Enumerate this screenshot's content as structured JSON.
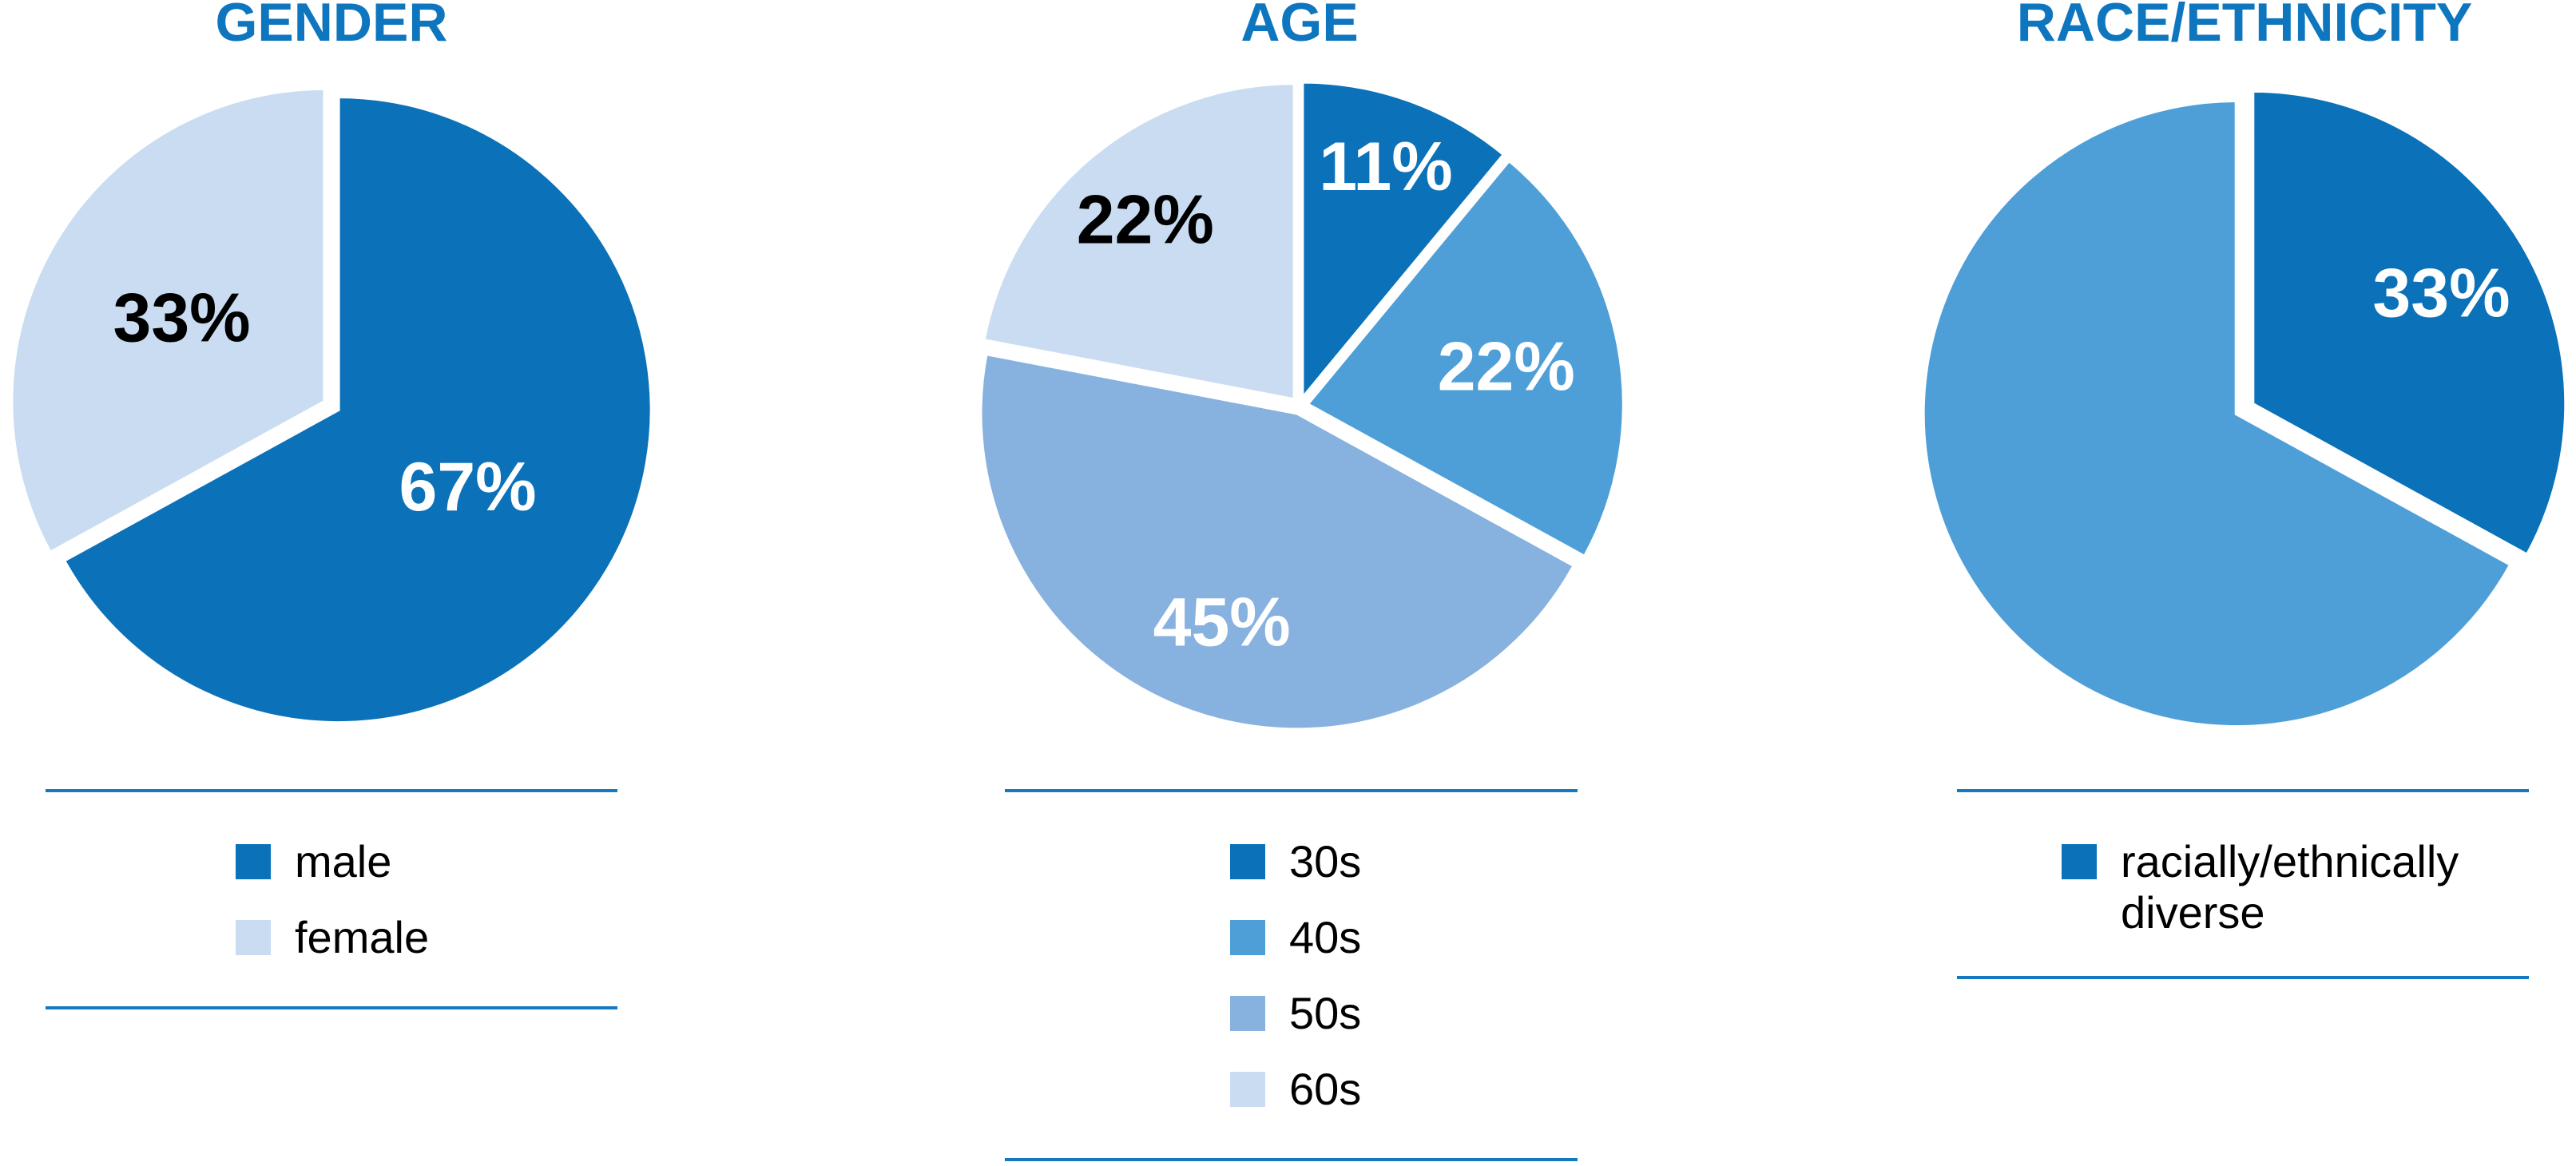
{
  "page": {
    "background_color": "#FFFFFF"
  },
  "styles": {
    "title_color": "#0E76BE",
    "separator_color": "#1579C0",
    "legend_text_color": "#000000",
    "slice_border_color": "#FFFFFF"
  },
  "charts": [
    {
      "title": "GENDER",
      "chart_data": {
        "type": "pie",
        "units": "percent",
        "start_angle_deg": 0,
        "direction": "clockwise",
        "legend_position": "bottom",
        "slices": [
          {
            "label": "male",
            "value": 67,
            "data_label": "67%",
            "color": "#0B71B8",
            "label_color": "#FFFFFF",
            "label_r": 0.48,
            "in_legend": true
          },
          {
            "label": "female",
            "value": 33,
            "data_label": "33%",
            "color": "#C9DCF1",
            "label_color": "#000000",
            "label_r": 0.53,
            "in_legend": true
          }
        ]
      }
    },
    {
      "title": "AGE",
      "chart_data": {
        "type": "pie",
        "units": "percent",
        "start_angle_deg": 0,
        "direction": "clockwise",
        "legend_position": "bottom",
        "slices": [
          {
            "label": "30s",
            "value": 11,
            "data_label": "11%",
            "color": "#0B71B8",
            "label_color": "#FFFFFF",
            "label_r": 0.78,
            "in_legend": true
          },
          {
            "label": "40s",
            "value": 22,
            "data_label": "22%",
            "color": "#4E9FD8",
            "label_color": "#FFFFFF",
            "label_r": 0.64,
            "in_legend": true
          },
          {
            "label": "50s",
            "value": 45,
            "data_label": "45%",
            "color": "#87B1DE",
            "label_color": "#FFFFFF",
            "label_r": 0.7,
            "in_legend": true
          },
          {
            "label": "60s",
            "value": 22,
            "data_label": "22%",
            "color": "#C9DCF1",
            "label_color": "#000000",
            "label_r": 0.74,
            "in_legend": true
          }
        ]
      }
    },
    {
      "title": "RACE/ETHNICITY",
      "chart_data": {
        "type": "pie",
        "units": "percent",
        "start_angle_deg": 0,
        "direction": "clockwise",
        "legend_position": "bottom",
        "slices": [
          {
            "label": "racially/ethnically diverse",
            "value": 33,
            "data_label": "33%",
            "color": "#0B71B8",
            "label_color": "#FFFFFF",
            "label_r": 0.7,
            "in_legend": true
          },
          {
            "label": "",
            "value": 67,
            "data_label": "",
            "color": "#4E9FD8",
            "label_color": "",
            "label_r": 0,
            "in_legend": false
          }
        ]
      }
    }
  ]
}
